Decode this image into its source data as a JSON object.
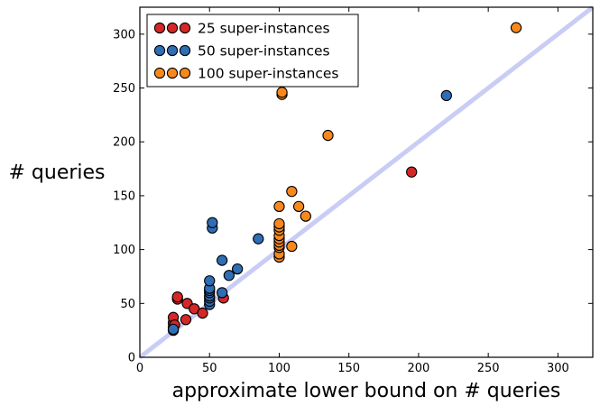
{
  "chart_data": {
    "type": "scatter",
    "title": "",
    "xlabel": "approximate lower bound on # queries",
    "ylabel": "# queries",
    "xlim": [
      0,
      325
    ],
    "ylim": [
      0,
      325
    ],
    "xticks": [
      0,
      50,
      100,
      150,
      200,
      250,
      300
    ],
    "yticks": [
      0,
      50,
      100,
      150,
      200,
      250,
      300
    ],
    "grid": false,
    "legend_position": "top-left",
    "reference_line": {
      "label": "y = x",
      "color": "#c9cdf5"
    },
    "series": [
      {
        "name": "25 super-instances",
        "color": "#d62728",
        "points": [
          [
            24,
            25
          ],
          [
            24,
            28
          ],
          [
            24,
            32
          ],
          [
            24,
            37
          ],
          [
            25,
            30
          ],
          [
            27,
            54
          ],
          [
            27,
            56
          ],
          [
            33,
            35
          ],
          [
            34,
            50
          ],
          [
            39,
            45
          ],
          [
            45,
            41
          ],
          [
            60,
            55
          ],
          [
            195,
            172
          ]
        ]
      },
      {
        "name": "50 super-instances",
        "color": "#2f6db5",
        "points": [
          [
            24,
            26
          ],
          [
            50,
            49
          ],
          [
            50,
            52
          ],
          [
            50,
            55
          ],
          [
            50,
            57
          ],
          [
            50,
            60
          ],
          [
            50,
            62
          ],
          [
            50,
            64
          ],
          [
            50,
            71
          ],
          [
            52,
            120
          ],
          [
            52,
            125
          ],
          [
            59,
            60
          ],
          [
            59,
            90
          ],
          [
            64,
            76
          ],
          [
            70,
            82
          ],
          [
            85,
            110
          ],
          [
            220,
            243
          ]
        ]
      },
      {
        "name": "100 super-instances",
        "color": "#f7891c",
        "points": [
          [
            100,
            93
          ],
          [
            100,
            96
          ],
          [
            100,
            102
          ],
          [
            100,
            104
          ],
          [
            100,
            107
          ],
          [
            100,
            110
          ],
          [
            100,
            113
          ],
          [
            100,
            118
          ],
          [
            100,
            121
          ],
          [
            100,
            124
          ],
          [
            100,
            140
          ],
          [
            102,
            244
          ],
          [
            102,
            246
          ],
          [
            109,
            103
          ],
          [
            109,
            154
          ],
          [
            114,
            140
          ],
          [
            119,
            131
          ],
          [
            135,
            206
          ],
          [
            270,
            306
          ]
        ]
      }
    ]
  }
}
